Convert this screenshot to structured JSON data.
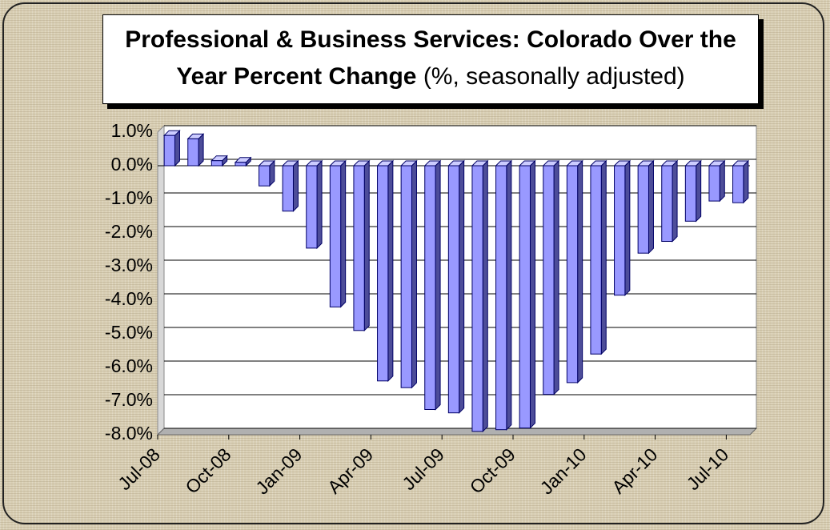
{
  "chart_data": {
    "type": "bar",
    "title": "Professional & Business Services: Colorado Over the Year Percent Change",
    "subtitle": "(%, seasonally adjusted)",
    "categories": [
      "Jul-08",
      null,
      null,
      "Oct-08",
      null,
      null,
      "Jan-09",
      null,
      null,
      "Apr-09",
      null,
      null,
      "Jul-09",
      null,
      null,
      "Oct-09",
      null,
      null,
      "Jan-10",
      null,
      null,
      "Apr-10",
      null,
      null,
      "Jul-10"
    ],
    "values": [
      0.9,
      0.8,
      0.15,
      0.1,
      -0.6,
      -1.35,
      -2.45,
      -4.2,
      -4.9,
      -6.4,
      -6.6,
      -7.25,
      -7.35,
      -7.9,
      -7.85,
      -7.8,
      -6.8,
      -6.45,
      -5.6,
      -3.85,
      -2.6,
      -2.25,
      -1.65,
      -1.05,
      -1.1
    ],
    "color": "#9999ff",
    "ylim": [
      -8,
      1
    ],
    "yticks": [
      {
        "value": -8,
        "label": "-8.0%"
      },
      {
        "value": -7,
        "label": "-7.0%"
      },
      {
        "value": -6,
        "label": "-6.0%"
      },
      {
        "value": -5,
        "label": "-5.0%"
      },
      {
        "value": -4,
        "label": "-4.0%"
      },
      {
        "value": -3,
        "label": "-3.0%"
      },
      {
        "value": -2,
        "label": "-2.0%"
      },
      {
        "value": -1,
        "label": "-1.0%"
      },
      {
        "value": 0,
        "label": "0.0%"
      },
      {
        "value": 1,
        "label": "1.0%"
      }
    ],
    "grid": true
  }
}
